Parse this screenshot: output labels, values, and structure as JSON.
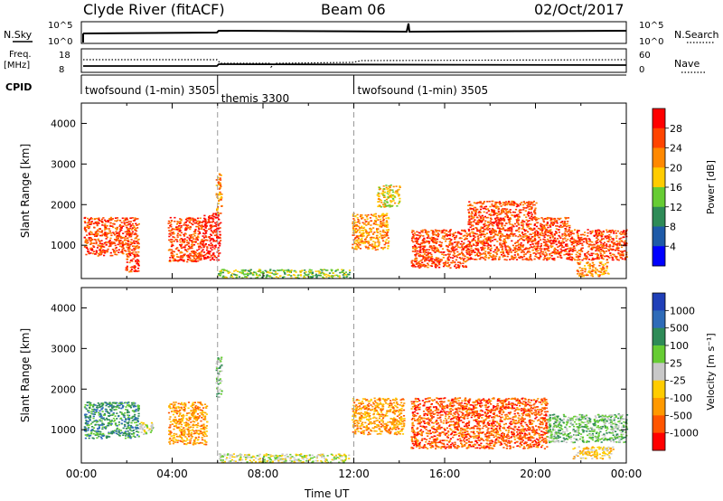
{
  "header": {
    "station": "Clyde River (fitACF)",
    "beam": "Beam 06",
    "date": "02/Oct/2017"
  },
  "noise_panel": {
    "left_label": "N.Sky",
    "right_label": "N.Search",
    "left_ticks": [
      "10^5",
      "10^0"
    ],
    "right_ticks": [
      "10^5",
      "10^0"
    ]
  },
  "freq_panel": {
    "left_label_line1": "Freq.",
    "left_label_line2": "[MHz]",
    "right_label": "Nave",
    "left_ticks": [
      "18",
      "8"
    ],
    "right_ticks": [
      "60",
      "0"
    ]
  },
  "cpid": {
    "label": "CPID",
    "segments": [
      {
        "name": "twofsound (1-min) 3505",
        "start_hour": 0,
        "end_hour": 6
      },
      {
        "name": "themis 3300",
        "start_hour": 6,
        "end_hour": 12
      },
      {
        "name": "twofsound (1-min) 3505",
        "start_hour": 12,
        "end_hour": 24
      }
    ]
  },
  "chart_data": [
    {
      "type": "heatmap",
      "title": "",
      "ylabel": "Slant Range [km]",
      "xlabel": "",
      "xlim": [
        0,
        24
      ],
      "ylim": [
        180,
        4500
      ],
      "y_ticks": [
        "1000",
        "2000",
        "3000",
        "4000"
      ],
      "colorbar": {
        "label": "Power [dB]",
        "ticks": [
          "28",
          "24",
          "20",
          "16",
          "12",
          "8",
          "4"
        ],
        "colors": [
          "#ff0000",
          "#ff4400",
          "#ff8800",
          "#ffcc00",
          "#66cc33",
          "#2e8b57",
          "#1e5aa8",
          "#0000ff"
        ]
      },
      "bands": [
        {
          "start": 0.1,
          "end": 2.5,
          "low": 750,
          "high": 1700,
          "class": 1
        },
        {
          "start": 1.9,
          "end": 2.5,
          "low": 350,
          "high": 800,
          "class": 1
        },
        {
          "start": 3.8,
          "end": 5.3,
          "low": 600,
          "high": 1700,
          "class": 1
        },
        {
          "start": 5.3,
          "end": 6.1,
          "low": 650,
          "high": 1800,
          "class": 0
        },
        {
          "start": 5.9,
          "end": 6.15,
          "low": 1800,
          "high": 2800,
          "class": 2
        },
        {
          "start": 6.0,
          "end": 11.8,
          "low": 200,
          "high": 420,
          "class": 4
        },
        {
          "start": 11.9,
          "end": 13.5,
          "low": 900,
          "high": 1800,
          "class": 2
        },
        {
          "start": 13.0,
          "end": 14.0,
          "low": 1950,
          "high": 2500,
          "class": 3
        },
        {
          "start": 14.5,
          "end": 17.0,
          "low": 450,
          "high": 1400,
          "class": 1
        },
        {
          "start": 17.0,
          "end": 20.0,
          "low": 650,
          "high": 2100,
          "class": 1
        },
        {
          "start": 20.0,
          "end": 21.5,
          "low": 650,
          "high": 1700,
          "class": 1
        },
        {
          "start": 21.5,
          "end": 24.0,
          "low": 650,
          "high": 1400,
          "class": 1
        },
        {
          "start": 21.8,
          "end": 23.2,
          "low": 250,
          "high": 600,
          "class": 2
        }
      ]
    },
    {
      "type": "heatmap",
      "title": "",
      "ylabel": "Slant Range [km]",
      "xlabel": "Time UT",
      "xlim": [
        0,
        24
      ],
      "ylim": [
        180,
        4500
      ],
      "x_ticks": [
        "00:00",
        "04:00",
        "08:00",
        "12:00",
        "16:00",
        "20:00",
        "00:00"
      ],
      "y_ticks": [
        "1000",
        "2000",
        "3000",
        "4000"
      ],
      "colorbar": {
        "label": "Velocity [m s⁻¹]",
        "ticks": [
          "1000",
          "500",
          "100",
          "25",
          "-25",
          "-100",
          "-500",
          "-1000"
        ],
        "colors": [
          "#1f3fb8",
          "#2e6bb8",
          "#2e8b57",
          "#66cc33",
          "#c8c8c8",
          "#ffcc00",
          "#ff9900",
          "#ff5500",
          "#ff0000"
        ]
      },
      "bands": [
        {
          "start": 0.1,
          "end": 2.5,
          "low": 800,
          "high": 1700,
          "class": 2
        },
        {
          "start": 2.5,
          "end": 3.2,
          "low": 900,
          "high": 1200,
          "class": 4
        },
        {
          "start": 3.8,
          "end": 5.5,
          "low": 650,
          "high": 1700,
          "class": 6
        },
        {
          "start": 5.9,
          "end": 6.15,
          "low": 1800,
          "high": 2800,
          "class": 3
        },
        {
          "start": 6.0,
          "end": 11.8,
          "low": 200,
          "high": 420,
          "class": 4
        },
        {
          "start": 11.9,
          "end": 14.2,
          "low": 900,
          "high": 1800,
          "class": 6
        },
        {
          "start": 14.5,
          "end": 20.5,
          "low": 550,
          "high": 1800,
          "class": 7
        },
        {
          "start": 20.5,
          "end": 24.0,
          "low": 700,
          "high": 1400,
          "class": 3
        },
        {
          "start": 21.6,
          "end": 23.4,
          "low": 300,
          "high": 600,
          "class": 5
        }
      ]
    }
  ]
}
